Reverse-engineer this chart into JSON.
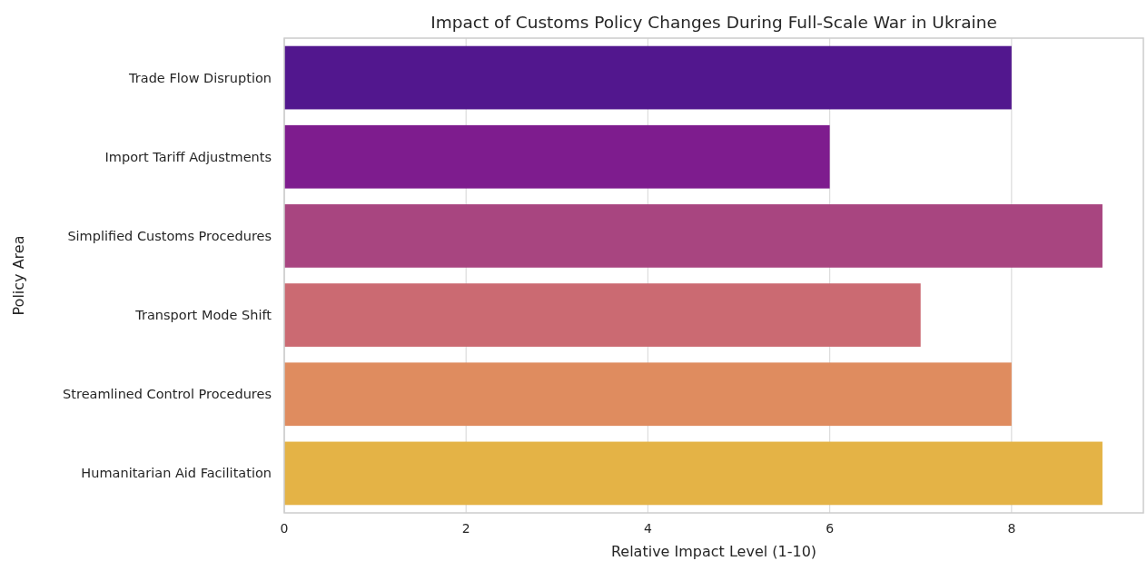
{
  "chart_data": {
    "type": "bar",
    "orientation": "horizontal",
    "title": "Impact of Customs Policy Changes During Full-Scale War in Ukraine",
    "xlabel": "Relative Impact Level (1-10)",
    "ylabel": "Policy Area",
    "categories": [
      "Trade Flow Disruption",
      "Import Tariff Adjustments",
      "Simplified Customs Procedures",
      "Transport Mode Shift",
      "Streamlined Control Procedures",
      "Humanitarian Aid Facilitation"
    ],
    "values": [
      8,
      6,
      9,
      7,
      8,
      9
    ],
    "colors": [
      "#52178e",
      "#7e1c8e",
      "#a84580",
      "#cb6a72",
      "#df8c5f",
      "#e4b346"
    ],
    "xlim": [
      0,
      9.45
    ],
    "xticks": [
      0,
      2,
      4,
      6,
      8
    ],
    "grid": "x"
  }
}
